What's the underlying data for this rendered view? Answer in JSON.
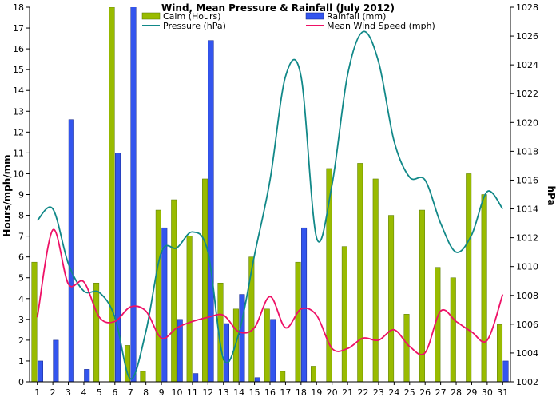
{
  "chart_data": {
    "type": "bar",
    "title": "Wind, Mean Pressure & Rainfall (July 2012)",
    "ylabel_left": "Hours/mph/mm",
    "ylabel_right": "hPa",
    "xlabel": "",
    "grid": false,
    "legend_position": "top",
    "ylim_left": [
      0,
      18
    ],
    "ylim_right": [
      1002,
      1028
    ],
    "yticks_left": [
      "0",
      "1",
      "2",
      "3",
      "4",
      "5",
      "6",
      "7",
      "8",
      "9",
      "10",
      "11",
      "12",
      "13",
      "14",
      "15",
      "16",
      "17",
      "18"
    ],
    "yticks_right": [
      "1002",
      "1004",
      "1006",
      "1008",
      "1010",
      "1012",
      "1014",
      "1016",
      "1018",
      "1020",
      "1022",
      "1024",
      "1026",
      "1028"
    ],
    "categories": [
      "1",
      "2",
      "3",
      "4",
      "5",
      "6",
      "7",
      "8",
      "9",
      "10",
      "11",
      "12",
      "13",
      "14",
      "15",
      "16",
      "17",
      "18",
      "19",
      "20",
      "21",
      "22",
      "23",
      "24",
      "25",
      "26",
      "27",
      "28",
      "29",
      "30",
      "31"
    ],
    "series": [
      {
        "name": "Calm (Hours)",
        "kind": "bar",
        "axis": "left",
        "color": "#99bb00",
        "values": [
          5.75,
          0,
          0,
          0,
          4.75,
          18,
          1.75,
          0.5,
          8.25,
          8.75,
          7,
          9.75,
          4.75,
          3.5,
          6,
          3.5,
          0.5,
          5.75,
          0.75,
          10.25,
          6.5,
          10.5,
          9.75,
          8,
          3.25,
          8.25,
          5.5,
          5,
          10,
          9,
          2.75
        ]
      },
      {
        "name": "Rainfall (mm)",
        "kind": "bar",
        "axis": "left",
        "color": "#3355ee",
        "values": [
          1,
          2,
          12.6,
          0.6,
          0,
          11,
          18.4,
          0,
          7.4,
          3,
          0.4,
          16.4,
          2.8,
          4.2,
          0.2,
          3,
          0,
          7.4,
          0,
          0,
          0,
          0,
          0,
          0,
          0,
          0,
          0,
          0,
          0,
          0,
          1
        ]
      },
      {
        "name": "Pressure (hPa)",
        "kind": "line",
        "axis": "right",
        "color": "#118888",
        "values": [
          1013.2,
          1014,
          1010.2,
          1008.3,
          1008.2,
          1006.5,
          1002.2,
          1005.5,
          1011,
          1011.3,
          1012.4,
          1011,
          1003.6,
          1005.4,
          1010.8,
          1016,
          1023.2,
          1023.2,
          1012,
          1015.7,
          1023.3,
          1026.3,
          1024.2,
          1018.7,
          1016.2,
          1016,
          1013,
          1011,
          1012.2,
          1015.2,
          1014
        ]
      },
      {
        "name": "Mean Wind Speed (mph)",
        "kind": "line",
        "axis": "left",
        "color": "#ee1166",
        "values": [
          3.1,
          7.3,
          4.7,
          4.8,
          3.1,
          2.9,
          3.6,
          3.4,
          2.1,
          2.6,
          2.9,
          3.1,
          3.2,
          2.4,
          2.6,
          4.1,
          2.6,
          3.5,
          3.2,
          1.6,
          1.6,
          2.1,
          2,
          2.5,
          1.7,
          1.4,
          3.4,
          2.9,
          2.4,
          2,
          4.2
        ]
      }
    ]
  }
}
